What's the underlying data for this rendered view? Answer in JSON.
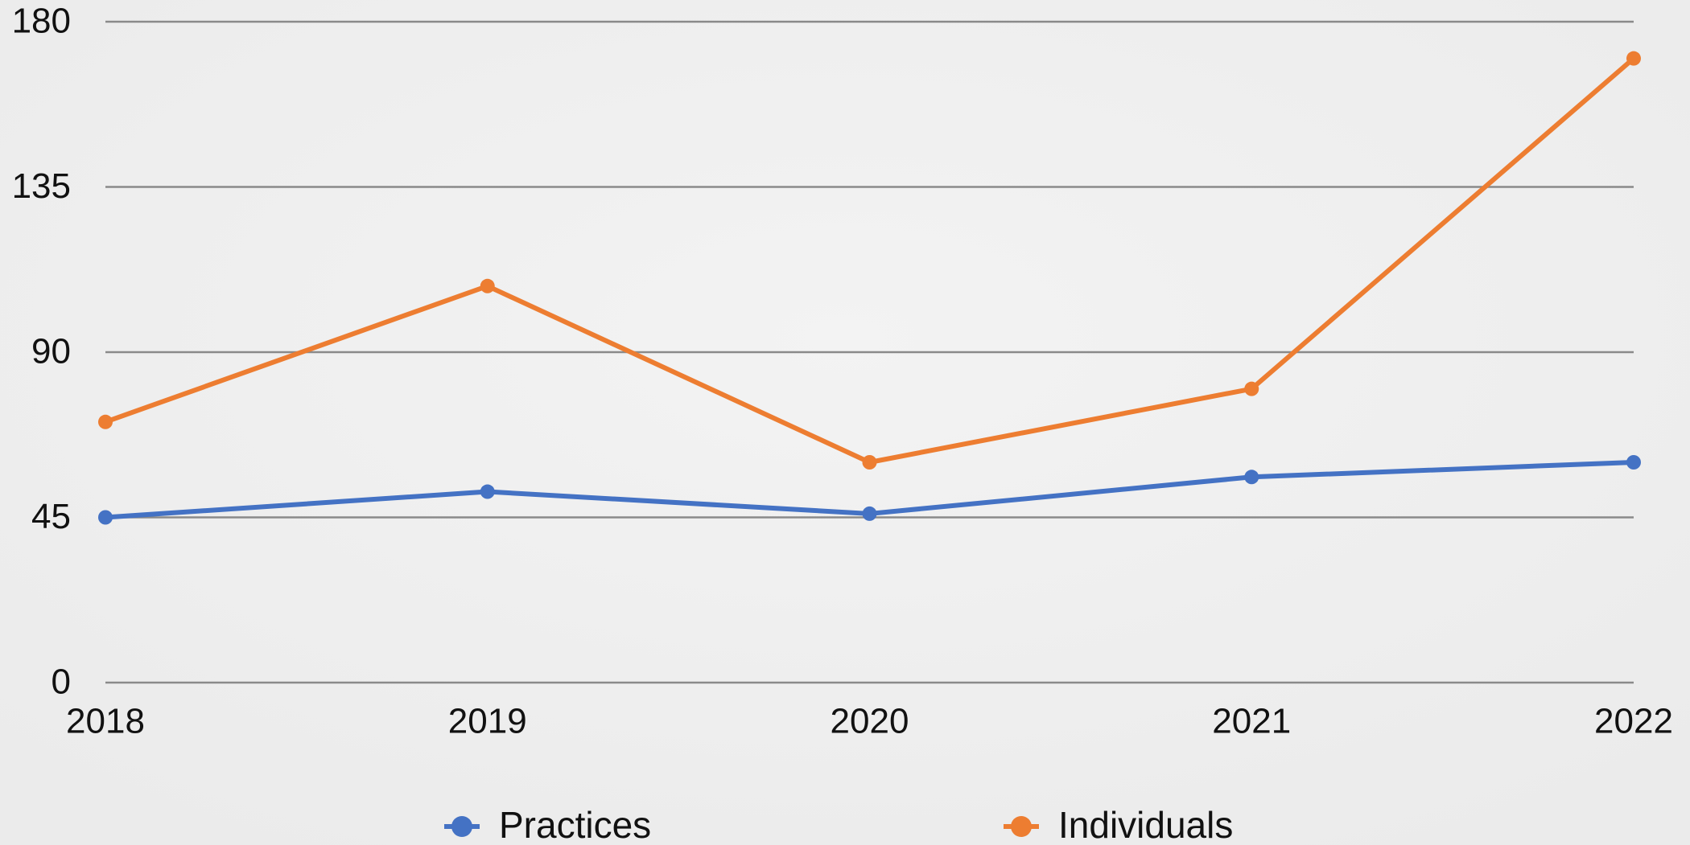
{
  "chart_data": {
    "type": "line",
    "categories": [
      "2018",
      "2019",
      "2020",
      "2021",
      "2022"
    ],
    "series": [
      {
        "name": "Practices",
        "color": "#4472c4",
        "values": [
          45,
          52,
          46,
          56,
          60
        ]
      },
      {
        "name": "Individuals",
        "color": "#ed7d31",
        "values": [
          71,
          108,
          60,
          80,
          170
        ]
      }
    ],
    "ylim": [
      0,
      180
    ],
    "yticks": [
      0,
      45,
      90,
      135,
      180
    ],
    "grid": true,
    "legend": "bottom"
  }
}
